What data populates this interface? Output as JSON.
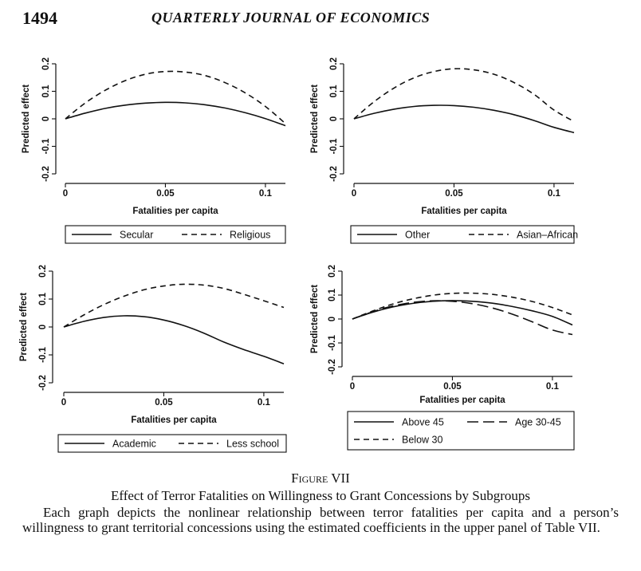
{
  "header": {
    "page_number": "1494",
    "running_head": "QUARTERLY JOURNAL OF ECONOMICS"
  },
  "figure": {
    "label": "Figure VII",
    "title": "Effect of Terror Fatalities on Willingness to Grant Concessions by Subgroups",
    "caption": "Each graph depicts the nonlinear relationship between terror fatalities per capita and a person’s willingness to grant territorial concessions using the estimated coefficients in the upper panel of Table VII."
  },
  "chart_data": [
    {
      "type": "line",
      "xlabel": "Fatalities per capita",
      "ylabel": "Predicted effect",
      "xlim": [
        0,
        0.11
      ],
      "ylim": [
        -0.2,
        0.2
      ],
      "xticks": [
        0,
        0.05,
        0.1
      ],
      "xtick_labels": [
        "0",
        "0.05",
        "0.1"
      ],
      "yticks": [
        -0.2,
        -0.1,
        0,
        0.1,
        0.2
      ],
      "ytick_labels": [
        "-0.2",
        "-0.1",
        "0",
        "0.1",
        "0.2"
      ],
      "x": [
        0,
        0.01,
        0.02,
        0.03,
        0.04,
        0.05,
        0.06,
        0.07,
        0.08,
        0.09,
        0.1,
        0.11
      ],
      "series": [
        {
          "name": "Secular",
          "style": "solid",
          "values": [
            0,
            0.021,
            0.038,
            0.05,
            0.057,
            0.06,
            0.058,
            0.051,
            0.039,
            0.022,
            0.001,
            -0.025
          ]
        },
        {
          "name": "Religious",
          "style": "dashed",
          "values": [
            0,
            0.058,
            0.104,
            0.139,
            0.162,
            0.172,
            0.17,
            0.157,
            0.131,
            0.094,
            0.045,
            -0.017
          ]
        }
      ],
      "legend_position": "bottom"
    },
    {
      "type": "line",
      "xlabel": "Fatalities per capita",
      "ylabel": "Predicted effect",
      "xlim": [
        0,
        0.11
      ],
      "ylim": [
        -0.2,
        0.2
      ],
      "xticks": [
        0,
        0.05,
        0.1
      ],
      "xtick_labels": [
        "0",
        "0.05",
        "0.1"
      ],
      "yticks": [
        -0.2,
        -0.1,
        0,
        0.1,
        0.2
      ],
      "ytick_labels": [
        "-0.2",
        "-0.1",
        "0",
        "0.1",
        "0.2"
      ],
      "x": [
        0,
        0.01,
        0.02,
        0.03,
        0.04,
        0.05,
        0.06,
        0.07,
        0.08,
        0.09,
        0.1,
        0.11
      ],
      "series": [
        {
          "name": "Other",
          "style": "solid",
          "values": [
            0,
            0.02,
            0.035,
            0.045,
            0.049,
            0.048,
            0.042,
            0.031,
            0.015,
            -0.006,
            -0.031,
            -0.05
          ]
        },
        {
          "name": "Asian–African",
          "style": "dashed",
          "values": [
            0,
            0.062,
            0.112,
            0.149,
            0.172,
            0.182,
            0.178,
            0.162,
            0.132,
            0.089,
            0.032,
            -0.01
          ]
        }
      ],
      "legend_position": "bottom"
    },
    {
      "type": "line",
      "xlabel": "Fatalities per capita",
      "ylabel": "Predicted effect",
      "xlim": [
        0,
        0.11
      ],
      "ylim": [
        -0.2,
        0.2
      ],
      "xticks": [
        0,
        0.05,
        0.1
      ],
      "xtick_labels": [
        "0",
        "0.05",
        "0.1"
      ],
      "yticks": [
        -0.2,
        -0.1,
        0,
        0.1,
        0.2
      ],
      "ytick_labels": [
        "-0.2",
        "-0.1",
        "0",
        "0.1",
        "0.2"
      ],
      "x": [
        0,
        0.01,
        0.02,
        0.03,
        0.04,
        0.05,
        0.06,
        0.07,
        0.08,
        0.09,
        0.1,
        0.11
      ],
      "series": [
        {
          "name": "Academic",
          "style": "solid",
          "values": [
            0,
            0.02,
            0.034,
            0.04,
            0.037,
            0.025,
            0.005,
            -0.022,
            -0.054,
            -0.081,
            -0.105,
            -0.132
          ]
        },
        {
          "name": "Less school",
          "style": "dashed",
          "values": [
            0,
            0.043,
            0.08,
            0.11,
            0.133,
            0.147,
            0.153,
            0.15,
            0.138,
            0.117,
            0.094,
            0.07
          ]
        }
      ],
      "legend_position": "bottom"
    },
    {
      "type": "line",
      "xlabel": "Fatalities per capita",
      "ylabel": "Predicted effect",
      "xlim": [
        0,
        0.11
      ],
      "ylim": [
        -0.2,
        0.2
      ],
      "xticks": [
        0,
        0.05,
        0.1
      ],
      "xtick_labels": [
        "0",
        "0.05",
        "0.1"
      ],
      "yticks": [
        -0.2,
        -0.1,
        0,
        0.1,
        0.2
      ],
      "ytick_labels": [
        "-0.2",
        "-0.1",
        "0",
        "0.1",
        "0.2"
      ],
      "x": [
        0,
        0.01,
        0.02,
        0.03,
        0.04,
        0.05,
        0.06,
        0.07,
        0.08,
        0.09,
        0.1,
        0.11
      ],
      "series": [
        {
          "name": "Above 45",
          "style": "solid",
          "values": [
            0,
            0.028,
            0.05,
            0.065,
            0.074,
            0.077,
            0.074,
            0.066,
            0.052,
            0.034,
            0.011,
            -0.025
          ]
        },
        {
          "name": "Age 30-45",
          "style": "longdash",
          "values": [
            0,
            0.03,
            0.054,
            0.069,
            0.076,
            0.074,
            0.064,
            0.046,
            0.02,
            -0.012,
            -0.046,
            -0.065
          ]
        },
        {
          "name": "Below 30",
          "style": "dashed",
          "values": [
            0,
            0.033,
            0.062,
            0.084,
            0.099,
            0.107,
            0.108,
            0.103,
            0.091,
            0.073,
            0.048,
            0.017
          ]
        }
      ],
      "legend_position": "bottom",
      "legend_rows": 2
    }
  ]
}
